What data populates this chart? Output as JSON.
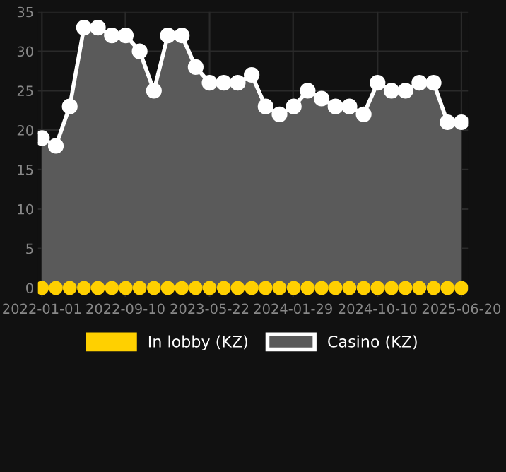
{
  "chart_data": {
    "type": "area",
    "x": [
      "2022-01-01",
      "2022-02-12",
      "2022-03-26",
      "2022-05-08",
      "2022-06-19",
      "2022-07-31",
      "2022-09-11",
      "2022-10-23",
      "2022-12-05",
      "2023-01-16",
      "2023-02-27",
      "2023-04-10",
      "2023-05-22",
      "2023-07-04",
      "2023-08-15",
      "2023-09-26",
      "2023-11-07",
      "2023-12-19",
      "2024-01-31",
      "2024-03-13",
      "2024-04-24",
      "2024-06-05",
      "2024-07-17",
      "2024-08-29",
      "2024-10-10",
      "2024-11-21",
      "2025-01-02",
      "2025-02-13",
      "2025-03-28",
      "2025-05-09",
      "2025-06-20"
    ],
    "series": [
      {
        "name": "In lobby (KZ)",
        "type": "scatter",
        "color": "#ffd000",
        "values": [
          0,
          0,
          0,
          0,
          0,
          0,
          0,
          0,
          0,
          0,
          0,
          0,
          0,
          0,
          0,
          0,
          0,
          0,
          0,
          0,
          0,
          0,
          0,
          0,
          0,
          0,
          0,
          0,
          0,
          0,
          0
        ]
      },
      {
        "name": "Casino (KZ)",
        "color": "#ffffff",
        "values": [
          19,
          18,
          23,
          33,
          33,
          32,
          32,
          30,
          25,
          32,
          32,
          28,
          26,
          26,
          26,
          27,
          23,
          22,
          23,
          25,
          24,
          23,
          23,
          22,
          26,
          25,
          25,
          26,
          26,
          21,
          21
        ]
      }
    ],
    "xlim": [
      "2021-12-20",
      "2025-07-10"
    ],
    "xticks": [
      {
        "value": "2022-01-01",
        "label": "2022-01-01"
      },
      {
        "value": "2022-09-10",
        "label": "2022-09-10"
      },
      {
        "value": "2023-05-22",
        "label": "2023-05-22"
      },
      {
        "value": "2024-01-29",
        "label": "2024-01-29"
      },
      {
        "value": "2024-10-10",
        "label": "2024-10-10"
      },
      {
        "value": "2025-06-20",
        "label": "2025-06-20"
      }
    ],
    "ylim": [
      -1.2,
      35
    ],
    "yticks": [
      0,
      5,
      10,
      15,
      20,
      25,
      30,
      35
    ],
    "grid": true,
    "legend": "bottom",
    "marker": "circle",
    "line_style": "solid"
  }
}
